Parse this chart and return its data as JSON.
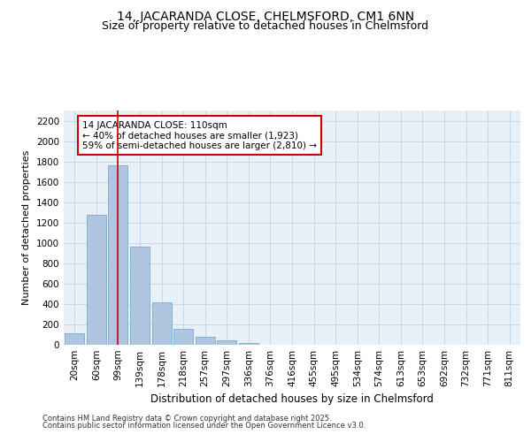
{
  "title": "14, JACARANDA CLOSE, CHELMSFORD, CM1 6NN",
  "subtitle": "Size of property relative to detached houses in Chelmsford",
  "xlabel": "Distribution of detached houses by size in Chelmsford",
  "ylabel": "Number of detached properties",
  "footer_line1": "Contains HM Land Registry data © Crown copyright and database right 2025.",
  "footer_line2": "Contains public sector information licensed under the Open Government Licence v3.0.",
  "categories": [
    "20sqm",
    "60sqm",
    "99sqm",
    "139sqm",
    "178sqm",
    "218sqm",
    "257sqm",
    "297sqm",
    "336sqm",
    "376sqm",
    "416sqm",
    "455sqm",
    "495sqm",
    "534sqm",
    "574sqm",
    "613sqm",
    "653sqm",
    "692sqm",
    "732sqm",
    "771sqm",
    "811sqm"
  ],
  "values": [
    110,
    1280,
    1760,
    960,
    420,
    155,
    75,
    40,
    20,
    0,
    0,
    0,
    0,
    0,
    0,
    0,
    0,
    0,
    0,
    0,
    0
  ],
  "bar_color": "#aec6e0",
  "bar_edge_color": "#7aaac8",
  "vline_color": "#cc0000",
  "vline_x": 2,
  "annotation_box_text": "14 JACARANDA CLOSE: 110sqm\n← 40% of detached houses are smaller (1,923)\n59% of semi-detached houses are larger (2,810) →",
  "annotation_box_color": "#cc0000",
  "ylim": [
    0,
    2300
  ],
  "yticks": [
    0,
    200,
    400,
    600,
    800,
    1000,
    1200,
    1400,
    1600,
    1800,
    2000,
    2200
  ],
  "grid_color": "#c8d8e8",
  "bg_color": "#e8f0f8",
  "title_fontsize": 10,
  "subtitle_fontsize": 9,
  "xlabel_fontsize": 8.5,
  "ylabel_fontsize": 8,
  "tick_fontsize": 7.5,
  "ann_fontsize": 7.5,
  "footer_fontsize": 6
}
